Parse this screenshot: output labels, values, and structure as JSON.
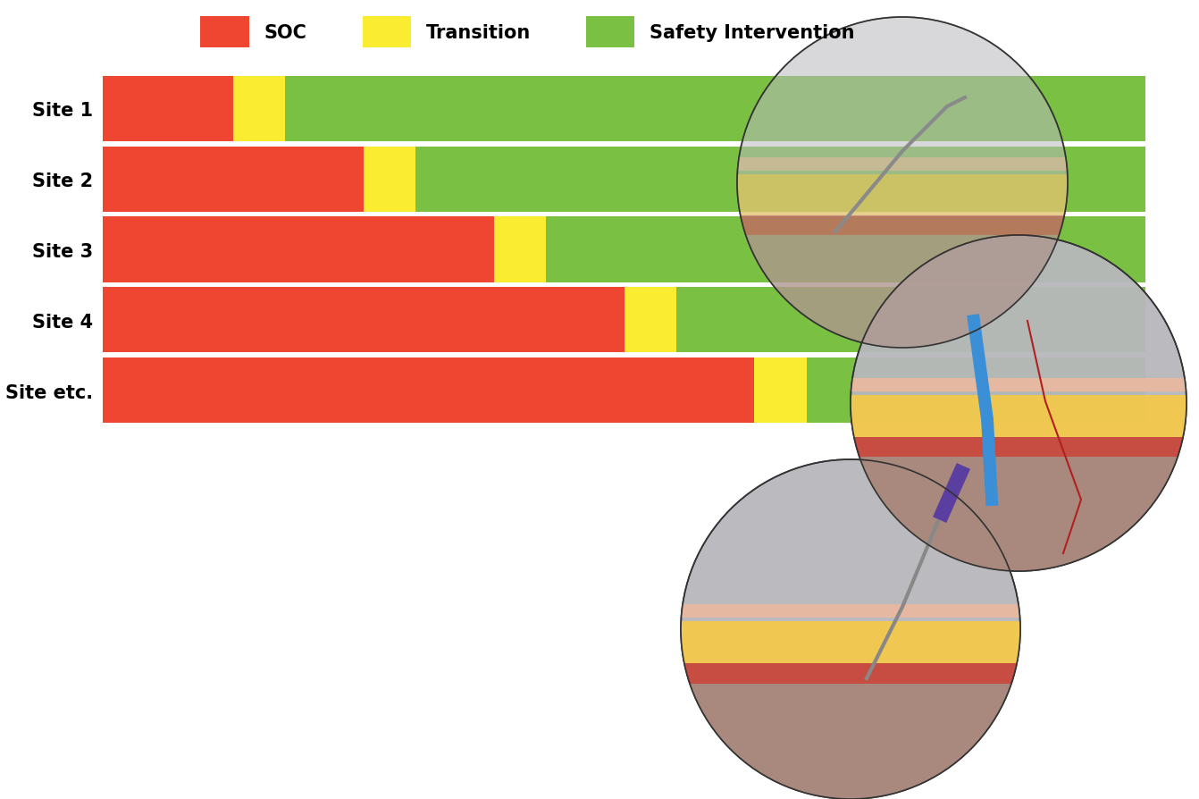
{
  "chart_data": {
    "type": "bar",
    "orientation": "horizontal",
    "stacked": true,
    "categories": [
      "Site 1",
      "Site 2",
      "Site 3",
      "Site 4",
      "Site etc."
    ],
    "series": [
      {
        "name": "SOC",
        "color": "#ee4630",
        "values": [
          2.5,
          5,
          7.5,
          10,
          12.5
        ]
      },
      {
        "name": "Transition",
        "color": "#f9ec31",
        "values": [
          1,
          1,
          1,
          1,
          1
        ]
      },
      {
        "name": "Safety Intervention",
        "color": "#7ac143",
        "values": [
          16.5,
          14,
          11.5,
          9,
          6.5
        ]
      }
    ],
    "xlim": [
      0,
      20
    ],
    "tick_labels": "y",
    "legend": "upper center"
  }
}
